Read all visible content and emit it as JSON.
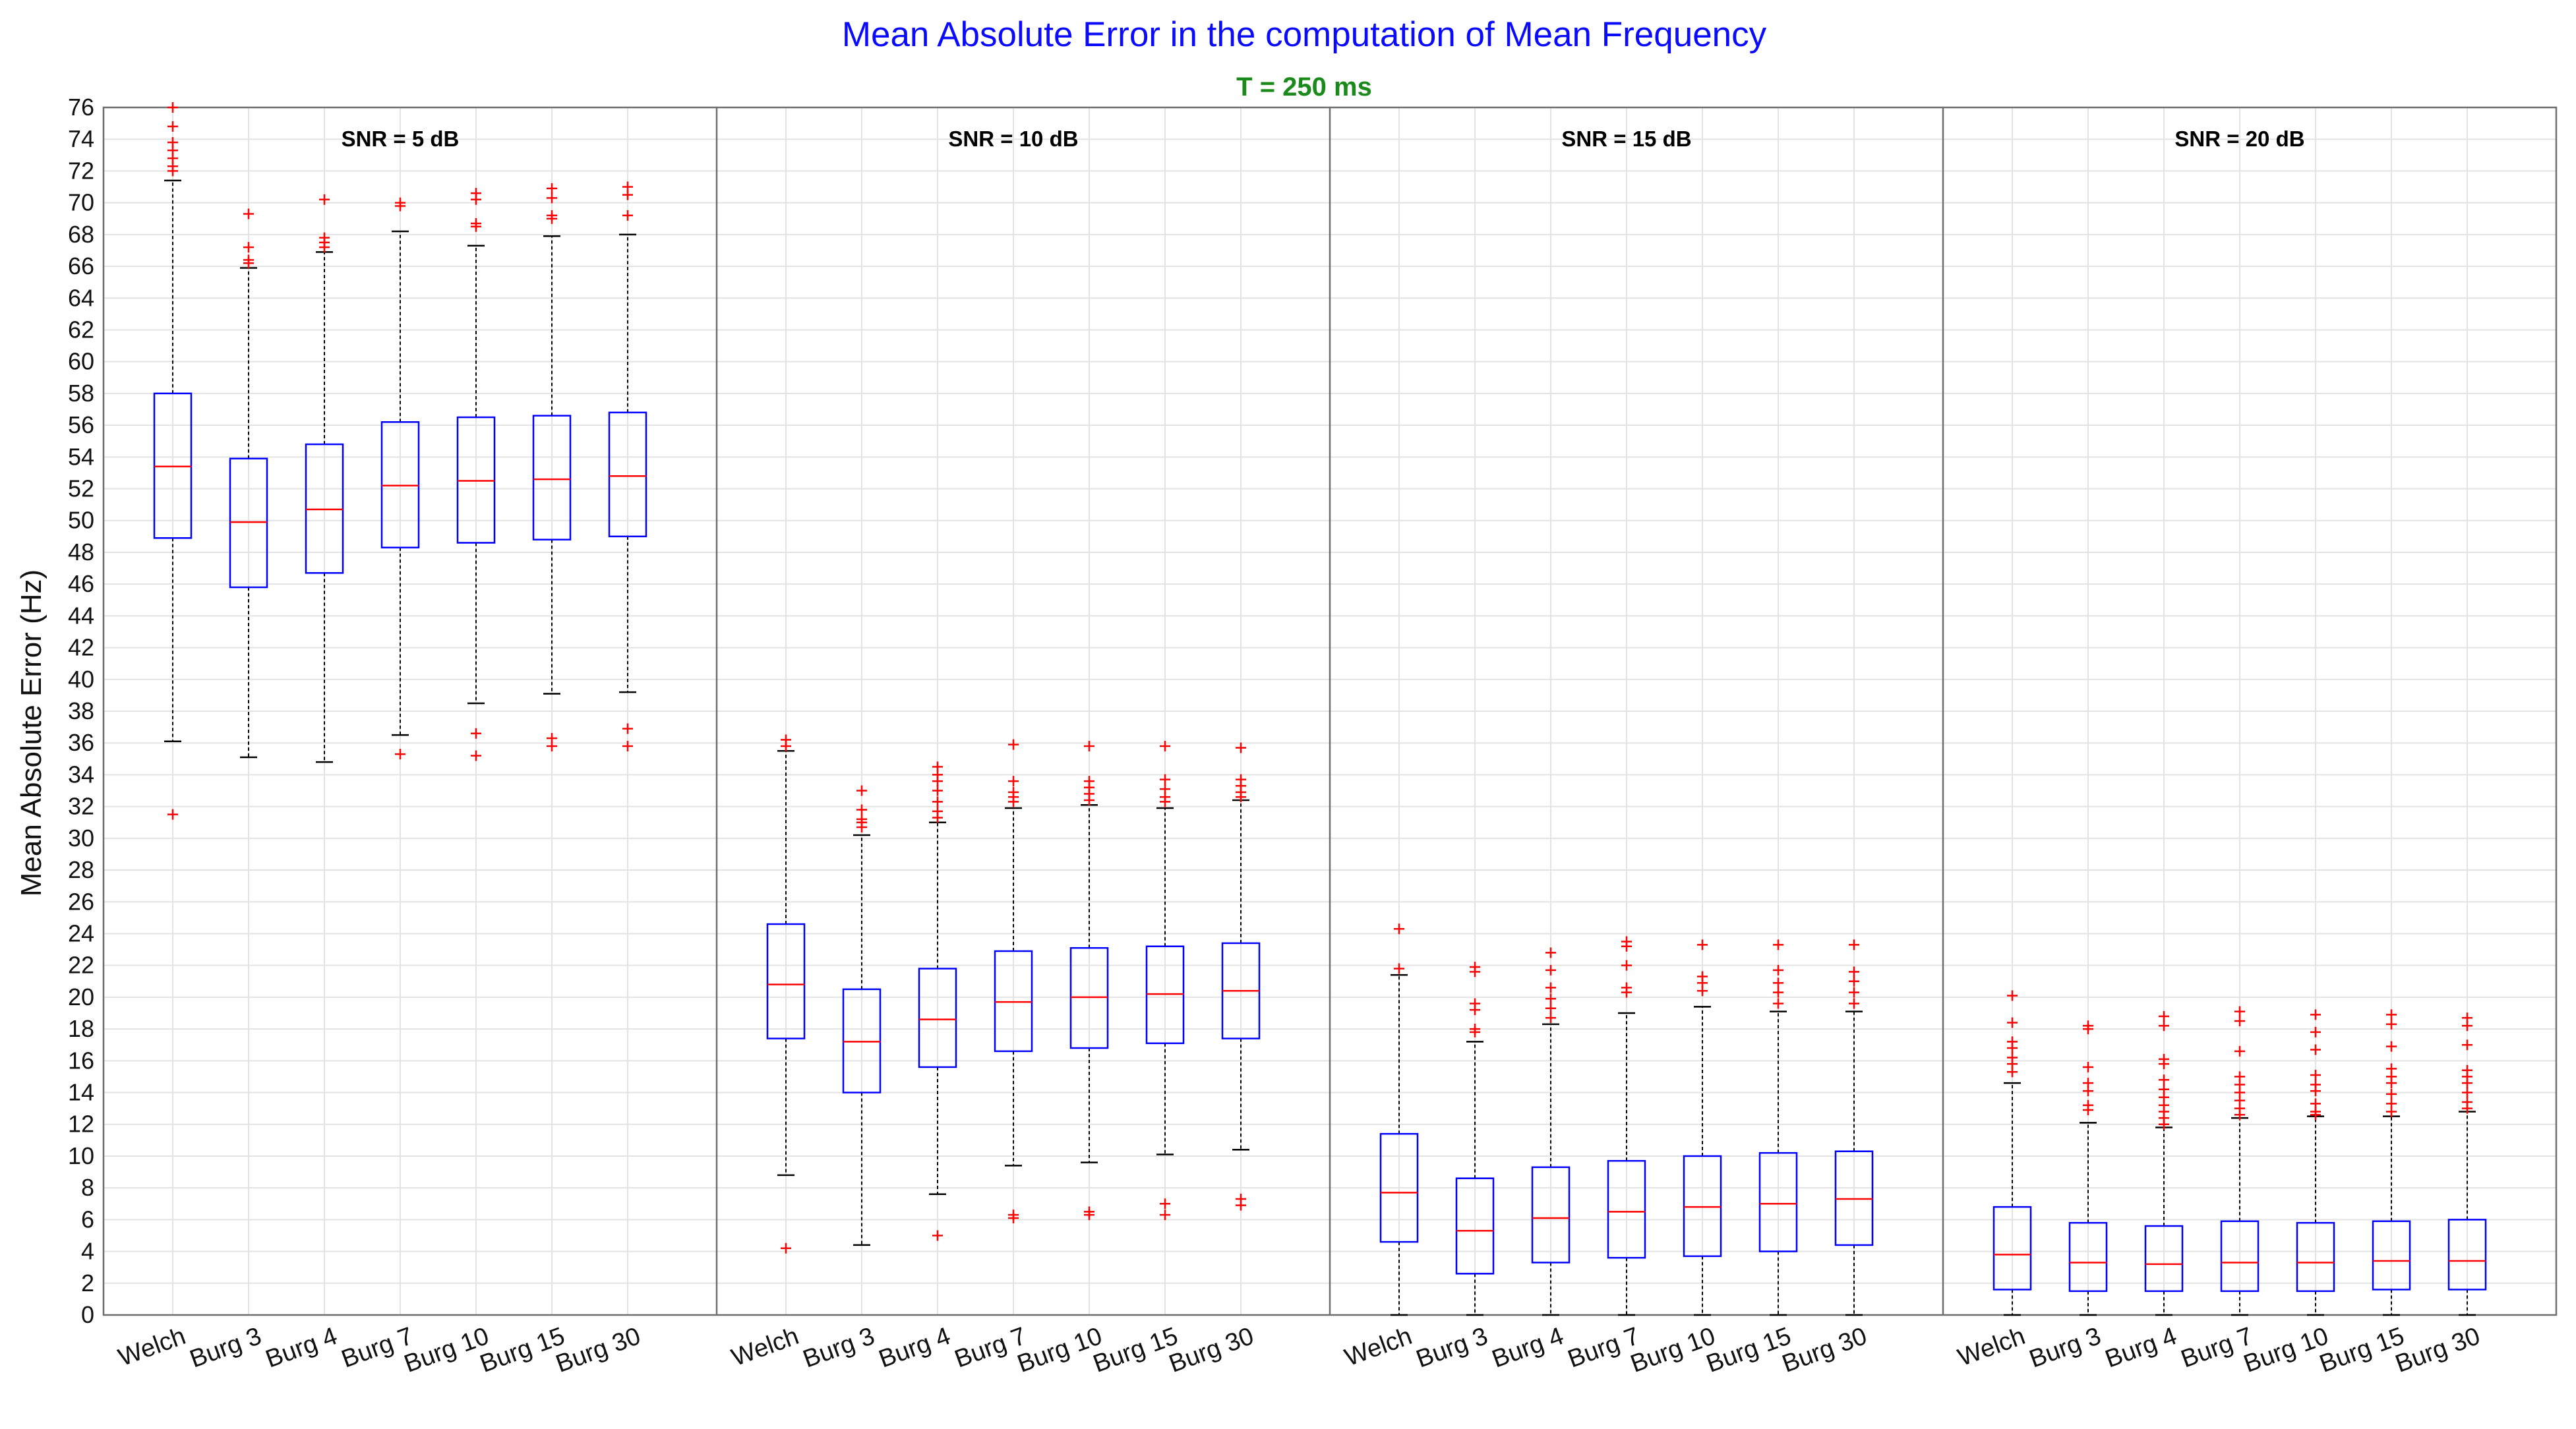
{
  "chart_data": {
    "type": "box",
    "title": "Mean Absolute Error in the computation of Mean Frequency",
    "subtitle": "T = 250 ms",
    "ylabel": "Mean Absolute Error (Hz)",
    "ylim": [
      0,
      76
    ],
    "yticks": [
      0,
      2,
      4,
      6,
      8,
      10,
      12,
      14,
      16,
      18,
      20,
      22,
      24,
      26,
      28,
      30,
      32,
      34,
      36,
      38,
      40,
      42,
      44,
      46,
      48,
      50,
      52,
      54,
      56,
      58,
      60,
      62,
      64,
      66,
      68,
      70,
      72,
      74,
      76
    ],
    "grid": true,
    "colors": {
      "box": "#0000ff",
      "median": "#ff0000",
      "outlier": "#ff0000",
      "whisker": "#000000",
      "title": "#0a0aff",
      "subtitle": "#1a8a1a"
    },
    "categories": [
      "Welch",
      "Burg 3",
      "Burg 4",
      "Burg 7",
      "Burg 10",
      "Burg 15",
      "Burg 30"
    ],
    "panels": [
      {
        "label": "SNR = 5 dB",
        "boxes": [
          {
            "category": "Welch",
            "whisker_low": 36.1,
            "q1": 48.9,
            "median": 53.4,
            "q3": 58.0,
            "whisker_high": 71.4,
            "outliers": [
              31.5,
              72.0,
              72.3,
              72.8,
              73.3,
              73.8,
              74.8,
              76.0
            ]
          },
          {
            "category": "Burg 3",
            "whisker_low": 35.1,
            "q1": 45.8,
            "median": 49.9,
            "q3": 53.9,
            "whisker_high": 65.9,
            "outliers": [
              66.2,
              66.4,
              67.2,
              69.3
            ]
          },
          {
            "category": "Burg 4",
            "whisker_low": 34.8,
            "q1": 46.7,
            "median": 50.7,
            "q3": 54.8,
            "whisker_high": 66.9,
            "outliers": [
              67.2,
              67.5,
              67.8,
              70.2
            ]
          },
          {
            "category": "Burg 7",
            "whisker_low": 36.5,
            "q1": 48.3,
            "median": 52.2,
            "q3": 56.2,
            "whisker_high": 68.2,
            "outliers": [
              35.3,
              69.8,
              70.0
            ]
          },
          {
            "category": "Burg 10",
            "whisker_low": 38.5,
            "q1": 48.6,
            "median": 52.5,
            "q3": 56.5,
            "whisker_high": 67.3,
            "outliers": [
              35.2,
              36.6,
              68.5,
              68.7,
              70.2,
              70.6
            ]
          },
          {
            "category": "Burg 15",
            "whisker_low": 39.1,
            "q1": 48.8,
            "median": 52.6,
            "q3": 56.6,
            "whisker_high": 67.9,
            "outliers": [
              35.8,
              36.3,
              69.0,
              69.2,
              70.3,
              70.9
            ]
          },
          {
            "category": "Burg 30",
            "whisker_low": 39.2,
            "q1": 49.0,
            "median": 52.8,
            "q3": 56.8,
            "whisker_high": 68.0,
            "outliers": [
              35.8,
              36.9,
              69.2,
              70.5,
              71.0
            ]
          }
        ]
      },
      {
        "label": "SNR = 10 dB",
        "boxes": [
          {
            "category": "Welch",
            "whisker_low": 8.8,
            "q1": 17.4,
            "median": 20.8,
            "q3": 24.6,
            "whisker_high": 35.5,
            "outliers": [
              4.2,
              35.8,
              36.2
            ]
          },
          {
            "category": "Burg 3",
            "whisker_low": 4.4,
            "q1": 14.0,
            "median": 17.2,
            "q3": 20.5,
            "whisker_high": 30.2,
            "outliers": [
              30.7,
              31.0,
              31.2,
              31.8,
              33.0
            ]
          },
          {
            "category": "Burg 4",
            "whisker_low": 7.6,
            "q1": 15.6,
            "median": 18.6,
            "q3": 21.8,
            "whisker_high": 31.0,
            "outliers": [
              5.0,
              31.3,
              31.7,
              32.3,
              33.0,
              33.6,
              34.0,
              34.5
            ]
          },
          {
            "category": "Burg 7",
            "whisker_low": 9.4,
            "q1": 16.6,
            "median": 19.7,
            "q3": 22.9,
            "whisker_high": 31.9,
            "outliers": [
              6.1,
              6.3,
              32.3,
              32.6,
              32.9,
              33.6,
              35.9
            ]
          },
          {
            "category": "Burg 10",
            "whisker_low": 9.6,
            "q1": 16.8,
            "median": 20.0,
            "q3": 23.1,
            "whisker_high": 32.1,
            "outliers": [
              6.3,
              6.5,
              32.4,
              32.8,
              33.2,
              33.6,
              35.8
            ]
          },
          {
            "category": "Burg 15",
            "whisker_low": 10.1,
            "q1": 17.1,
            "median": 20.2,
            "q3": 23.2,
            "whisker_high": 31.9,
            "outliers": [
              6.3,
              7.0,
              32.3,
              32.6,
              33.1,
              33.7,
              35.8
            ]
          },
          {
            "category": "Burg 30",
            "whisker_low": 10.4,
            "q1": 17.4,
            "median": 20.4,
            "q3": 23.4,
            "whisker_high": 32.4,
            "outliers": [
              6.9,
              7.3,
              32.6,
              32.9,
              33.3,
              33.7,
              35.7
            ]
          }
        ]
      },
      {
        "label": "SNR = 15 dB",
        "boxes": [
          {
            "category": "Welch",
            "whisker_low": 0.0,
            "q1": 4.6,
            "median": 7.7,
            "q3": 11.4,
            "whisker_high": 21.4,
            "outliers": [
              21.8,
              24.3
            ]
          },
          {
            "category": "Burg 3",
            "whisker_low": 0.0,
            "q1": 2.6,
            "median": 5.3,
            "q3": 8.6,
            "whisker_high": 17.2,
            "outliers": [
              17.8,
              18.0,
              19.2,
              19.6,
              21.6,
              21.9
            ]
          },
          {
            "category": "Burg 4",
            "whisker_low": 0.0,
            "q1": 3.3,
            "median": 6.1,
            "q3": 9.3,
            "whisker_high": 18.3,
            "outliers": [
              18.7,
              19.3,
              19.9,
              20.6,
              21.7,
              22.8
            ]
          },
          {
            "category": "Burg 7",
            "whisker_low": 0.0,
            "q1": 3.6,
            "median": 6.5,
            "q3": 9.7,
            "whisker_high": 19.0,
            "outliers": [
              20.3,
              20.6,
              22.0,
              23.2,
              23.5
            ]
          },
          {
            "category": "Burg 10",
            "whisker_low": 0.0,
            "q1": 3.7,
            "median": 6.8,
            "q3": 10.0,
            "whisker_high": 19.4,
            "outliers": [
              20.4,
              20.9,
              21.3,
              23.3
            ]
          },
          {
            "category": "Burg 15",
            "whisker_low": 0.0,
            "q1": 4.0,
            "median": 7.0,
            "q3": 10.2,
            "whisker_high": 19.1,
            "outliers": [
              19.6,
              20.3,
              20.9,
              21.7,
              23.3
            ]
          },
          {
            "category": "Burg 30",
            "whisker_low": 0.0,
            "q1": 4.4,
            "median": 7.3,
            "q3": 10.3,
            "whisker_high": 19.1,
            "outliers": [
              19.6,
              20.3,
              21.0,
              21.6,
              23.3
            ]
          }
        ]
      },
      {
        "label": "SNR = 20 dB",
        "boxes": [
          {
            "category": "Welch",
            "whisker_low": 0.0,
            "q1": 1.6,
            "median": 3.8,
            "q3": 6.8,
            "whisker_high": 14.6,
            "outliers": [
              15.3,
              15.8,
              16.2,
              16.8,
              17.2,
              18.4,
              20.1
            ]
          },
          {
            "category": "Burg 3",
            "whisker_low": 0.0,
            "q1": 1.5,
            "median": 3.3,
            "q3": 5.8,
            "whisker_high": 12.1,
            "outliers": [
              12.9,
              13.2,
              14.1,
              14.6,
              15.6,
              18.0,
              18.2
            ]
          },
          {
            "category": "Burg 4",
            "whisker_low": 0.0,
            "q1": 1.5,
            "median": 3.2,
            "q3": 5.6,
            "whisker_high": 11.8,
            "outliers": [
              12.0,
              12.4,
              12.8,
              13.2,
              13.7,
              14.2,
              14.8,
              15.8,
              16.1,
              18.2,
              18.8
            ]
          },
          {
            "category": "Burg 7",
            "whisker_low": 0.0,
            "q1": 1.5,
            "median": 3.3,
            "q3": 5.9,
            "whisker_high": 12.4,
            "outliers": [
              12.6,
              13.0,
              13.5,
              14.0,
              14.5,
              15.0,
              16.6,
              18.5,
              19.1
            ]
          },
          {
            "category": "Burg 10",
            "whisker_low": 0.0,
            "q1": 1.5,
            "median": 3.3,
            "q3": 5.8,
            "whisker_high": 12.5,
            "outliers": [
              12.6,
              12.8,
              13.3,
              14.1,
              14.5,
              15.1,
              16.7,
              17.8,
              18.9
            ]
          },
          {
            "category": "Burg 15",
            "whisker_low": 0.0,
            "q1": 1.6,
            "median": 3.4,
            "q3": 5.9,
            "whisker_high": 12.5,
            "outliers": [
              12.8,
              13.3,
              13.9,
              14.6,
              15.0,
              15.5,
              16.9,
              18.3,
              18.9
            ]
          },
          {
            "category": "Burg 30",
            "whisker_low": 0.0,
            "q1": 1.6,
            "median": 3.4,
            "q3": 6.0,
            "whisker_high": 12.8,
            "outliers": [
              13.0,
              13.4,
              14.0,
              14.6,
              15.0,
              15.4,
              17.0,
              18.2,
              18.7
            ]
          }
        ]
      }
    ]
  }
}
